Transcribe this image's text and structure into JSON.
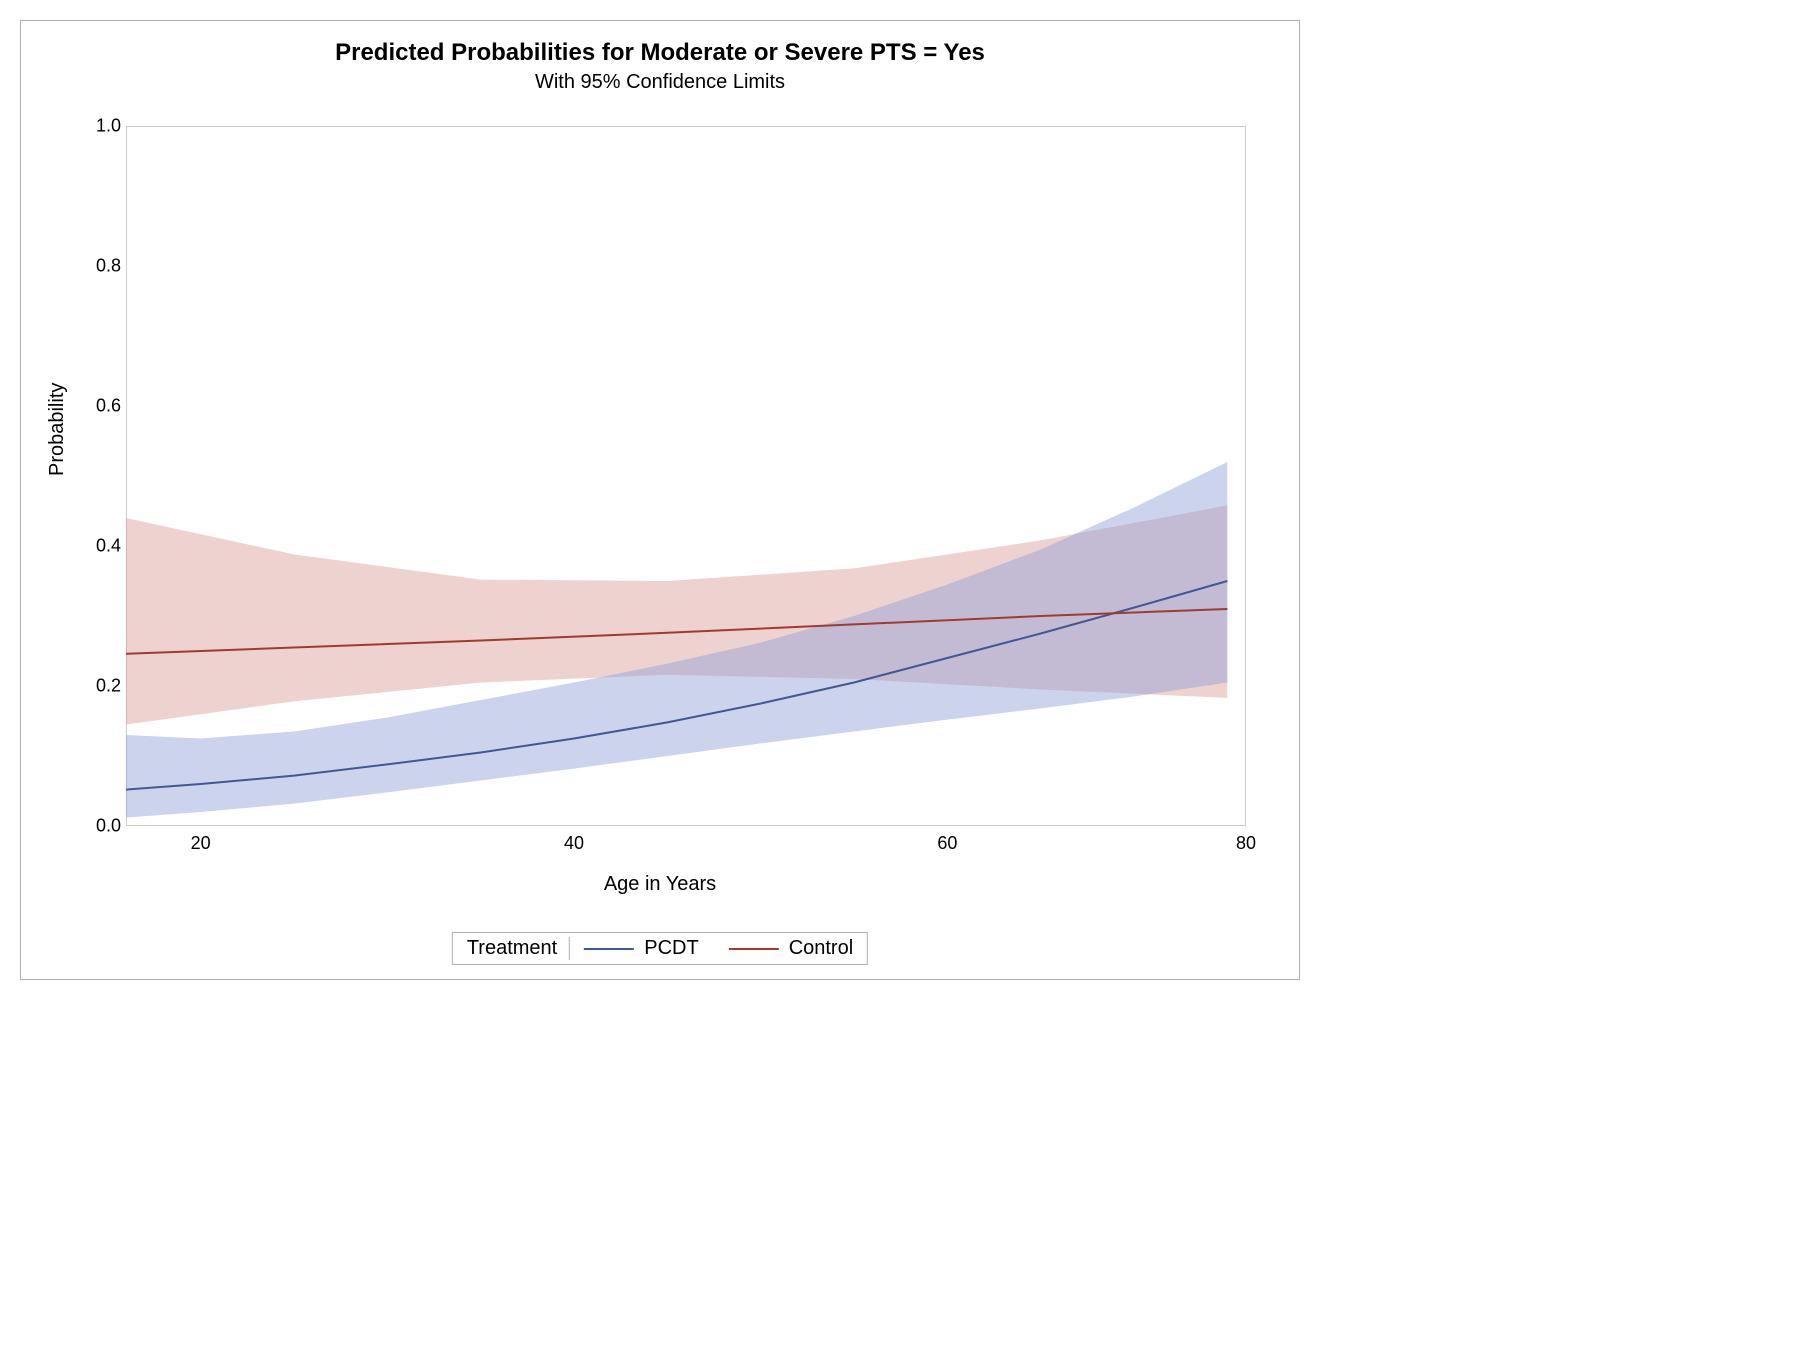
{
  "chart": {
    "type": "line-with-confidence-band",
    "title": "Predicted Probabilities for Moderate or Severe PTS = Yes",
    "subtitle": "With 95% Confidence Limits",
    "xlabel": "Age in Years",
    "ylabel": "Probability",
    "title_fontsize": 24,
    "subtitle_fontsize": 20,
    "label_fontsize": 20,
    "tick_fontsize": 18,
    "background_color": "#ffffff",
    "plot_background": "#ffffff",
    "plot_border": "#b0b0b0",
    "wall_border": "#cccccc",
    "xlim": [
      16,
      76
    ],
    "ylim": [
      0.0,
      1.0
    ],
    "xticks": [
      20,
      40,
      60,
      80
    ],
    "yticks": [
      0.0,
      0.2,
      0.4,
      0.6,
      0.8,
      1.0
    ],
    "ytick_labels": [
      "0.0",
      "0.2",
      "0.4",
      "0.6",
      "0.8",
      "1.0"
    ],
    "legend": {
      "title": "Treatment",
      "position": "bottom-center",
      "items": [
        {
          "label": "PCDT",
          "color": "#445694"
        },
        {
          "label": "Control",
          "color": "#a23a2e"
        }
      ]
    },
    "series": [
      {
        "name": "PCDT",
        "line_color": "#445694",
        "band_color": "#8da0d6",
        "band_opacity": 0.45,
        "line_width": 2,
        "x": [
          16,
          20,
          25,
          30,
          35,
          40,
          45,
          50,
          55,
          60,
          65,
          70,
          75
        ],
        "y": [
          0.052,
          0.06,
          0.072,
          0.088,
          0.105,
          0.125,
          0.148,
          0.175,
          0.205,
          0.24,
          0.275,
          0.312,
          0.35
        ],
        "lower": [
          0.012,
          0.02,
          0.032,
          0.048,
          0.065,
          0.082,
          0.1,
          0.118,
          0.135,
          0.152,
          0.168,
          0.185,
          0.205
        ],
        "upper": [
          0.13,
          0.125,
          0.135,
          0.155,
          0.18,
          0.205,
          0.232,
          0.262,
          0.3,
          0.345,
          0.395,
          0.455,
          0.52
        ]
      },
      {
        "name": "Control",
        "line_color": "#a23a2e",
        "band_color": "#d99c94",
        "band_opacity": 0.45,
        "line_width": 2,
        "x": [
          16,
          25,
          35,
          45,
          55,
          65,
          75
        ],
        "y": [
          0.246,
          0.255,
          0.265,
          0.276,
          0.288,
          0.3,
          0.31
        ],
        "lower": [
          0.145,
          0.178,
          0.205,
          0.216,
          0.21,
          0.195,
          0.183
        ],
        "upper": [
          0.44,
          0.388,
          0.352,
          0.35,
          0.368,
          0.408,
          0.458
        ]
      }
    ]
  }
}
